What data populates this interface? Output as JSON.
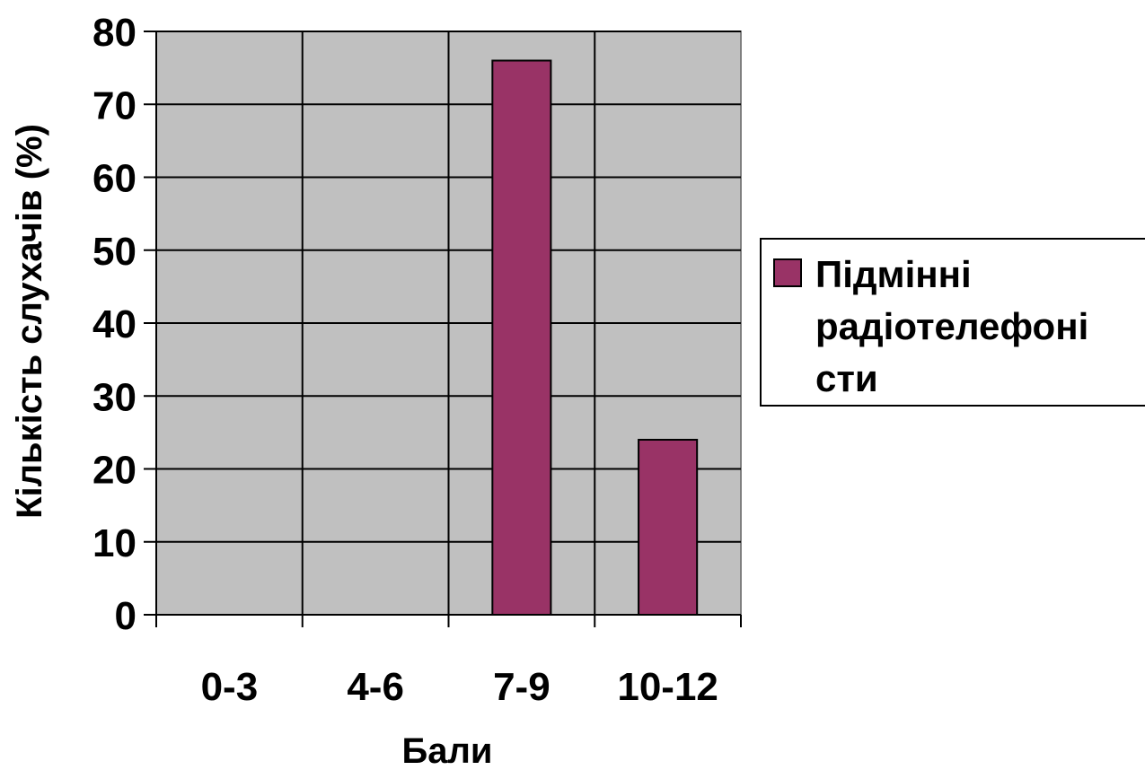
{
  "chart_data": {
    "type": "bar",
    "categories": [
      "0-3",
      "4-6",
      "7-9",
      "10-12"
    ],
    "series": [
      {
        "name": "Підмінні радіотелефоністи",
        "values": [
          0,
          0,
          76,
          24
        ],
        "color": "#993366"
      }
    ],
    "ylim": [
      0,
      80
    ],
    "yticks": [
      "0",
      "10",
      "20",
      "30",
      "40",
      "50",
      "60",
      "70",
      "80"
    ],
    "xlabel": "Бали",
    "ylabel": "Кількість слухачів (%)",
    "grid": true,
    "plot_background": "#c0c0c0",
    "legend": {
      "position": "right",
      "lines": [
        "Підмінні",
        "радіотелефоні",
        "сти"
      ]
    }
  }
}
